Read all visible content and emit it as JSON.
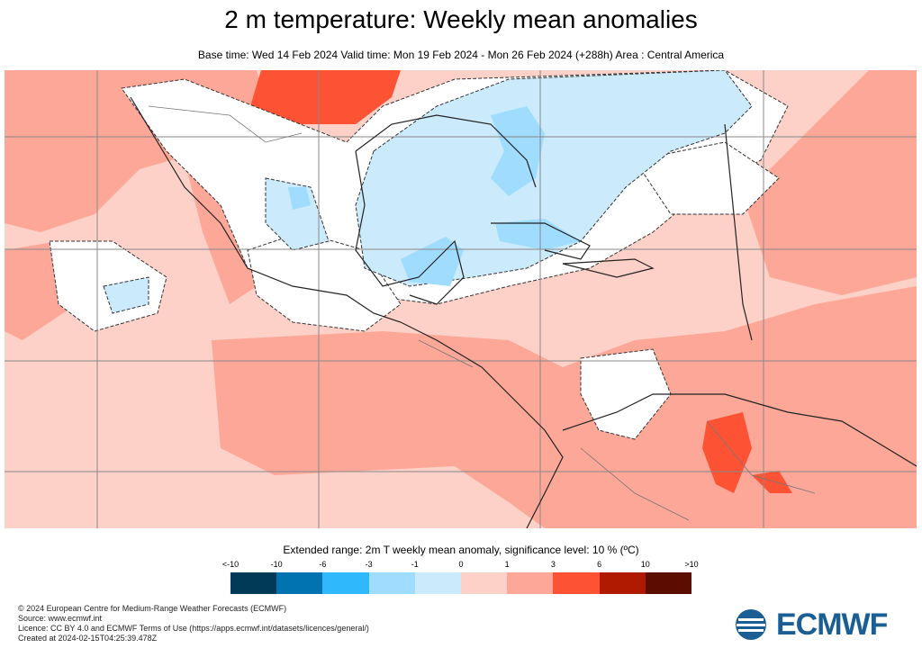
{
  "title": "2 m temperature: Weekly mean anomalies",
  "subtitle": "Base time: Wed 14 Feb 2024 Valid time: Mon 19 Feb 2024 - Mon 26 Feb 2024 (+288h) Area : Central America",
  "map": {
    "area": "Central America",
    "background_color": "#fdd0c8",
    "grid": true
  },
  "legend": {
    "title": "Extended range: 2m T weekly mean anomaly, significance level: 10 % (ºC)",
    "labels": [
      "<-10",
      "-10",
      "-6",
      "-3",
      "-1",
      "0",
      "1",
      "3",
      "6",
      "10",
      ">10"
    ],
    "colors": [
      "#003a57",
      "#0073b0",
      "#2fb8fb",
      "#9fdcfd",
      "#cbeafc",
      "#fdd0c8",
      "#fca797",
      "#fd5234",
      "#b01a00",
      "#5d0c02"
    ]
  },
  "footer": {
    "lines": [
      "© 2024 European Centre for Medium-Range Weather Forecasts (ECMWF)",
      "Source: www.ecmwf.int",
      "Licence: CC BY 4.0 and ECMWF Terms of Use (https://apps.ecmwf.int/datasets/licences/general/)",
      "Created at 2024-02-15T04:25:39.478Z"
    ]
  },
  "logo": {
    "text": "ECMWF",
    "color": "#1b5e94"
  }
}
